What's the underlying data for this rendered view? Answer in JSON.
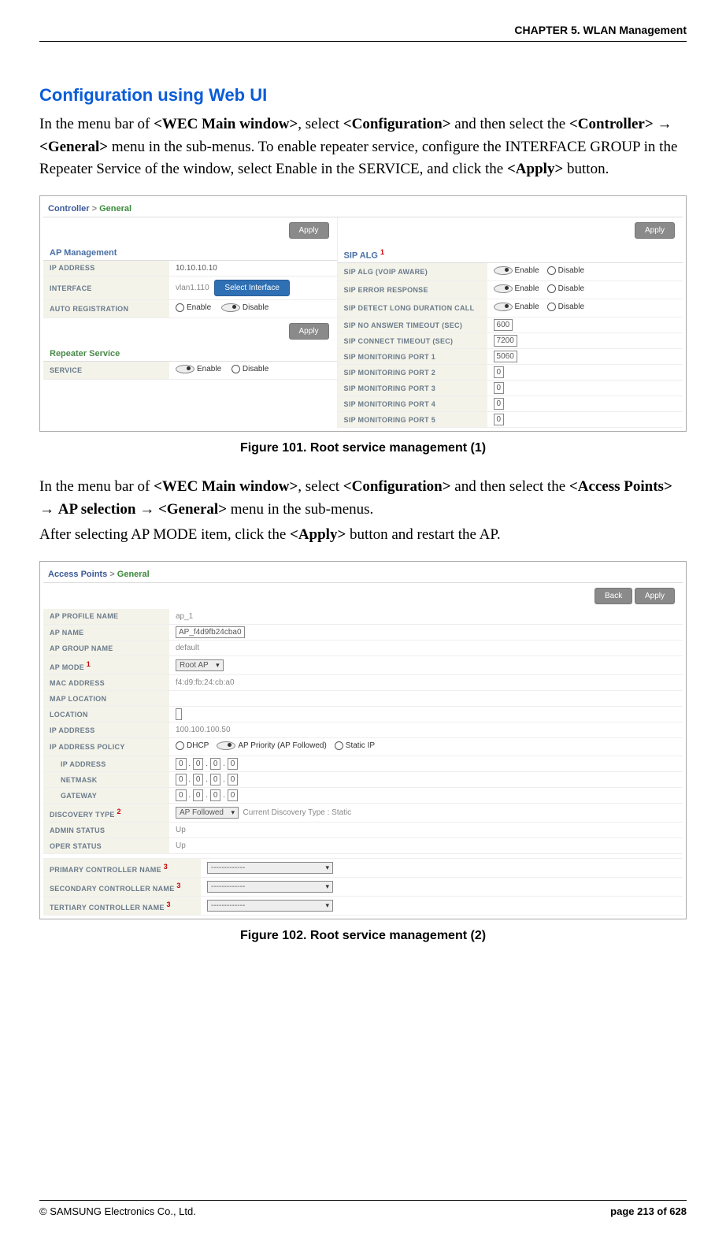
{
  "header": {
    "chapter": "CHAPTER 5. WLAN Management"
  },
  "section": {
    "title": "Configuration using Web UI"
  },
  "para1": {
    "t1": "In the menu bar of ",
    "b1": "<WEC Main window>",
    "t2": ", select ",
    "b2": "<Configuration>",
    "t3": " and then select the ",
    "b3": "<Controller>",
    "arrow": " → ",
    "b4": "<General>",
    "t4": " menu in the sub-menus. To enable repeater service, configure the INTERFACE GROUP in the Repeater Service of the window, select Enable in the SERVICE, and click the ",
    "b5": "<Apply>",
    "t5": " button."
  },
  "fig1": {
    "caption": "Figure 101. Root service management (1)",
    "crumb1": "Controller",
    "crumb_sep": ">",
    "crumb2": "General",
    "apply": "Apply",
    "ap_mgmt": "AP Management",
    "ip_address_lbl": "IP ADDRESS",
    "ip_address_val": "10.10.10.10",
    "interface_lbl": "INTERFACE",
    "interface_val": "vlan1.110",
    "select_interface": "Select Interface",
    "auto_reg_lbl": "AUTO REGISTRATION",
    "enable": "Enable",
    "disable": "Disable",
    "repeater_service": "Repeater Service",
    "service_lbl": "SERVICE",
    "sip_alg_title": "SIP ALG",
    "rows": [
      {
        "lbl": "SIP ALG (VOIP AWARE)",
        "type": "radio",
        "sel": "enable"
      },
      {
        "lbl": "SIP ERROR RESPONSE",
        "type": "radio",
        "sel": "enable"
      },
      {
        "lbl": "SIP DETECT LONG DURATION CALL",
        "type": "radio",
        "sel": "enable"
      },
      {
        "lbl": "SIP NO ANSWER TIMEOUT (SEC)",
        "type": "text",
        "val": "600"
      },
      {
        "lbl": "SIP CONNECT TIMEOUT (SEC)",
        "type": "text",
        "val": "7200"
      },
      {
        "lbl": "SIP MONITORING PORT 1",
        "type": "text",
        "val": "5060"
      },
      {
        "lbl": "SIP MONITORING PORT 2",
        "type": "text",
        "val": "0"
      },
      {
        "lbl": "SIP MONITORING PORT 3",
        "type": "text",
        "val": "0"
      },
      {
        "lbl": "SIP MONITORING PORT 4",
        "type": "text",
        "val": "0"
      },
      {
        "lbl": "SIP MONITORING PORT 5",
        "type": "text",
        "val": "0"
      }
    ]
  },
  "para2": {
    "t1": "In the menu bar of ",
    "b1": "<WEC Main window>",
    "t2": ", select ",
    "b2": "<Configuration>",
    "t3": " and then select the ",
    "b3": "<Access Points>",
    "arrow1": " → ",
    "b4": "AP selection",
    "arrow2": " → ",
    "b5": "<General>",
    "t4": " menu in the sub-menus.",
    "line2a": "After selecting AP MODE item, click the ",
    "b6": "<Apply>",
    "line2b": " button and restart the AP."
  },
  "fig2": {
    "caption": "Figure 102. Root service management (2)",
    "crumb1": "Access Points",
    "crumb_sep": ">",
    "crumb2": "General",
    "back": "Back",
    "apply": "Apply",
    "rows": [
      {
        "lbl": "AP PROFILE NAME",
        "type": "static",
        "val": "ap_1"
      },
      {
        "lbl": "AP NAME",
        "type": "textw",
        "val": "AP_f4d9fb24cba0"
      },
      {
        "lbl": "AP GROUP NAME",
        "type": "static",
        "val": "default"
      },
      {
        "lbl": "AP MODE",
        "type": "select",
        "val": "Root AP",
        "sup": "1"
      },
      {
        "lbl": "MAC ADDRESS",
        "type": "static",
        "val": "f4:d9:fb:24:cb:a0"
      },
      {
        "lbl": "MAP LOCATION",
        "type": "static",
        "val": ""
      },
      {
        "lbl": "LOCATION",
        "type": "textw",
        "val": ""
      },
      {
        "lbl": "IP ADDRESS",
        "type": "static",
        "val": "100.100.100.50"
      },
      {
        "lbl": "IP ADDRESS POLICY",
        "type": "policy"
      },
      {
        "lbl": "IP ADDRESS",
        "type": "ip",
        "indent": true
      },
      {
        "lbl": "NETMASK",
        "type": "ip",
        "indent": true
      },
      {
        "lbl": "GATEWAY",
        "type": "ip",
        "indent": true
      },
      {
        "lbl": "DISCOVERY TYPE",
        "type": "select",
        "val": "AP Followed",
        "sup": "2",
        "extra": "Current Discovery Type : Static"
      },
      {
        "lbl": "ADMIN STATUS",
        "type": "static",
        "val": "Up"
      },
      {
        "lbl": "OPER STATUS",
        "type": "static",
        "val": "Up"
      }
    ],
    "policy": {
      "dhcp": "DHCP",
      "prio": "AP Priority (AP Followed)",
      "static": "Static IP"
    },
    "ip_octet": "0",
    "ctrl_rows": [
      {
        "lbl": "PRIMARY CONTROLLER NAME",
        "sup": "3",
        "val": "-------------"
      },
      {
        "lbl": "SECONDARY CONTROLLER NAME",
        "sup": "3",
        "val": "-------------"
      },
      {
        "lbl": "TERTIARY CONTROLLER NAME",
        "sup": "3",
        "val": "-------------"
      }
    ]
  },
  "footer": {
    "copyright": "© SAMSUNG Electronics Co., Ltd.",
    "page": "page 213 of 628"
  }
}
